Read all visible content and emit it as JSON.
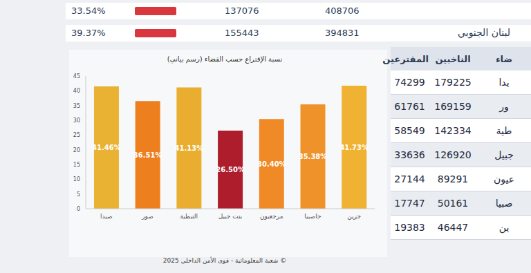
{
  "chart_data": {
    "type": "bar",
    "title": "نسبة الإقتراع حسب القضاء (رسم بياني)",
    "categories": [
      "صيدا",
      "صور",
      "النبطية",
      "بنت جبيل",
      "مرجعيون",
      "حاصبيا",
      "جزين"
    ],
    "values": [
      41.46,
      36.51,
      41.13,
      26.5,
      30.4,
      35.38,
      41.73
    ],
    "value_labels": [
      "41.46%",
      "36.51%",
      "41.13%",
      "26.50%",
      "30.40%",
      "35.38%",
      "41.73%"
    ],
    "colors": [
      "#e9b233",
      "#ee7f1e",
      "#e9ae2f",
      "#ad1d2b",
      "#f08a26",
      "#f0922a",
      "#f0b232"
    ],
    "ylim": [
      0,
      45
    ],
    "yticks": [
      0,
      5,
      10,
      15,
      20,
      25,
      30,
      35,
      40,
      45
    ],
    "grid": false,
    "data_labels": true
  },
  "top_rows": [
    [
      "33.54%",
      137076,
      408706
    ],
    [
      "39.37%",
      155443,
      394831,
      "لبنان الجنوبي"
    ]
  ],
  "table": {
    "header": [
      "ضاء",
      "الناخبين",
      "المقترعين"
    ],
    "rows": [
      [
        "يدا",
        179225,
        74299
      ],
      [
        "ور",
        169159,
        61761
      ],
      [
        "طية",
        142334,
        58549
      ],
      [
        "جبيل",
        126920,
        33636
      ],
      [
        "عيون",
        89291,
        27144
      ],
      [
        "صبيا",
        50161,
        17747
      ],
      [
        "ين",
        46447,
        19383
      ]
    ]
  },
  "footer": "© شعبة المعلوماتية - قوى الأمن الداخلي 2025"
}
